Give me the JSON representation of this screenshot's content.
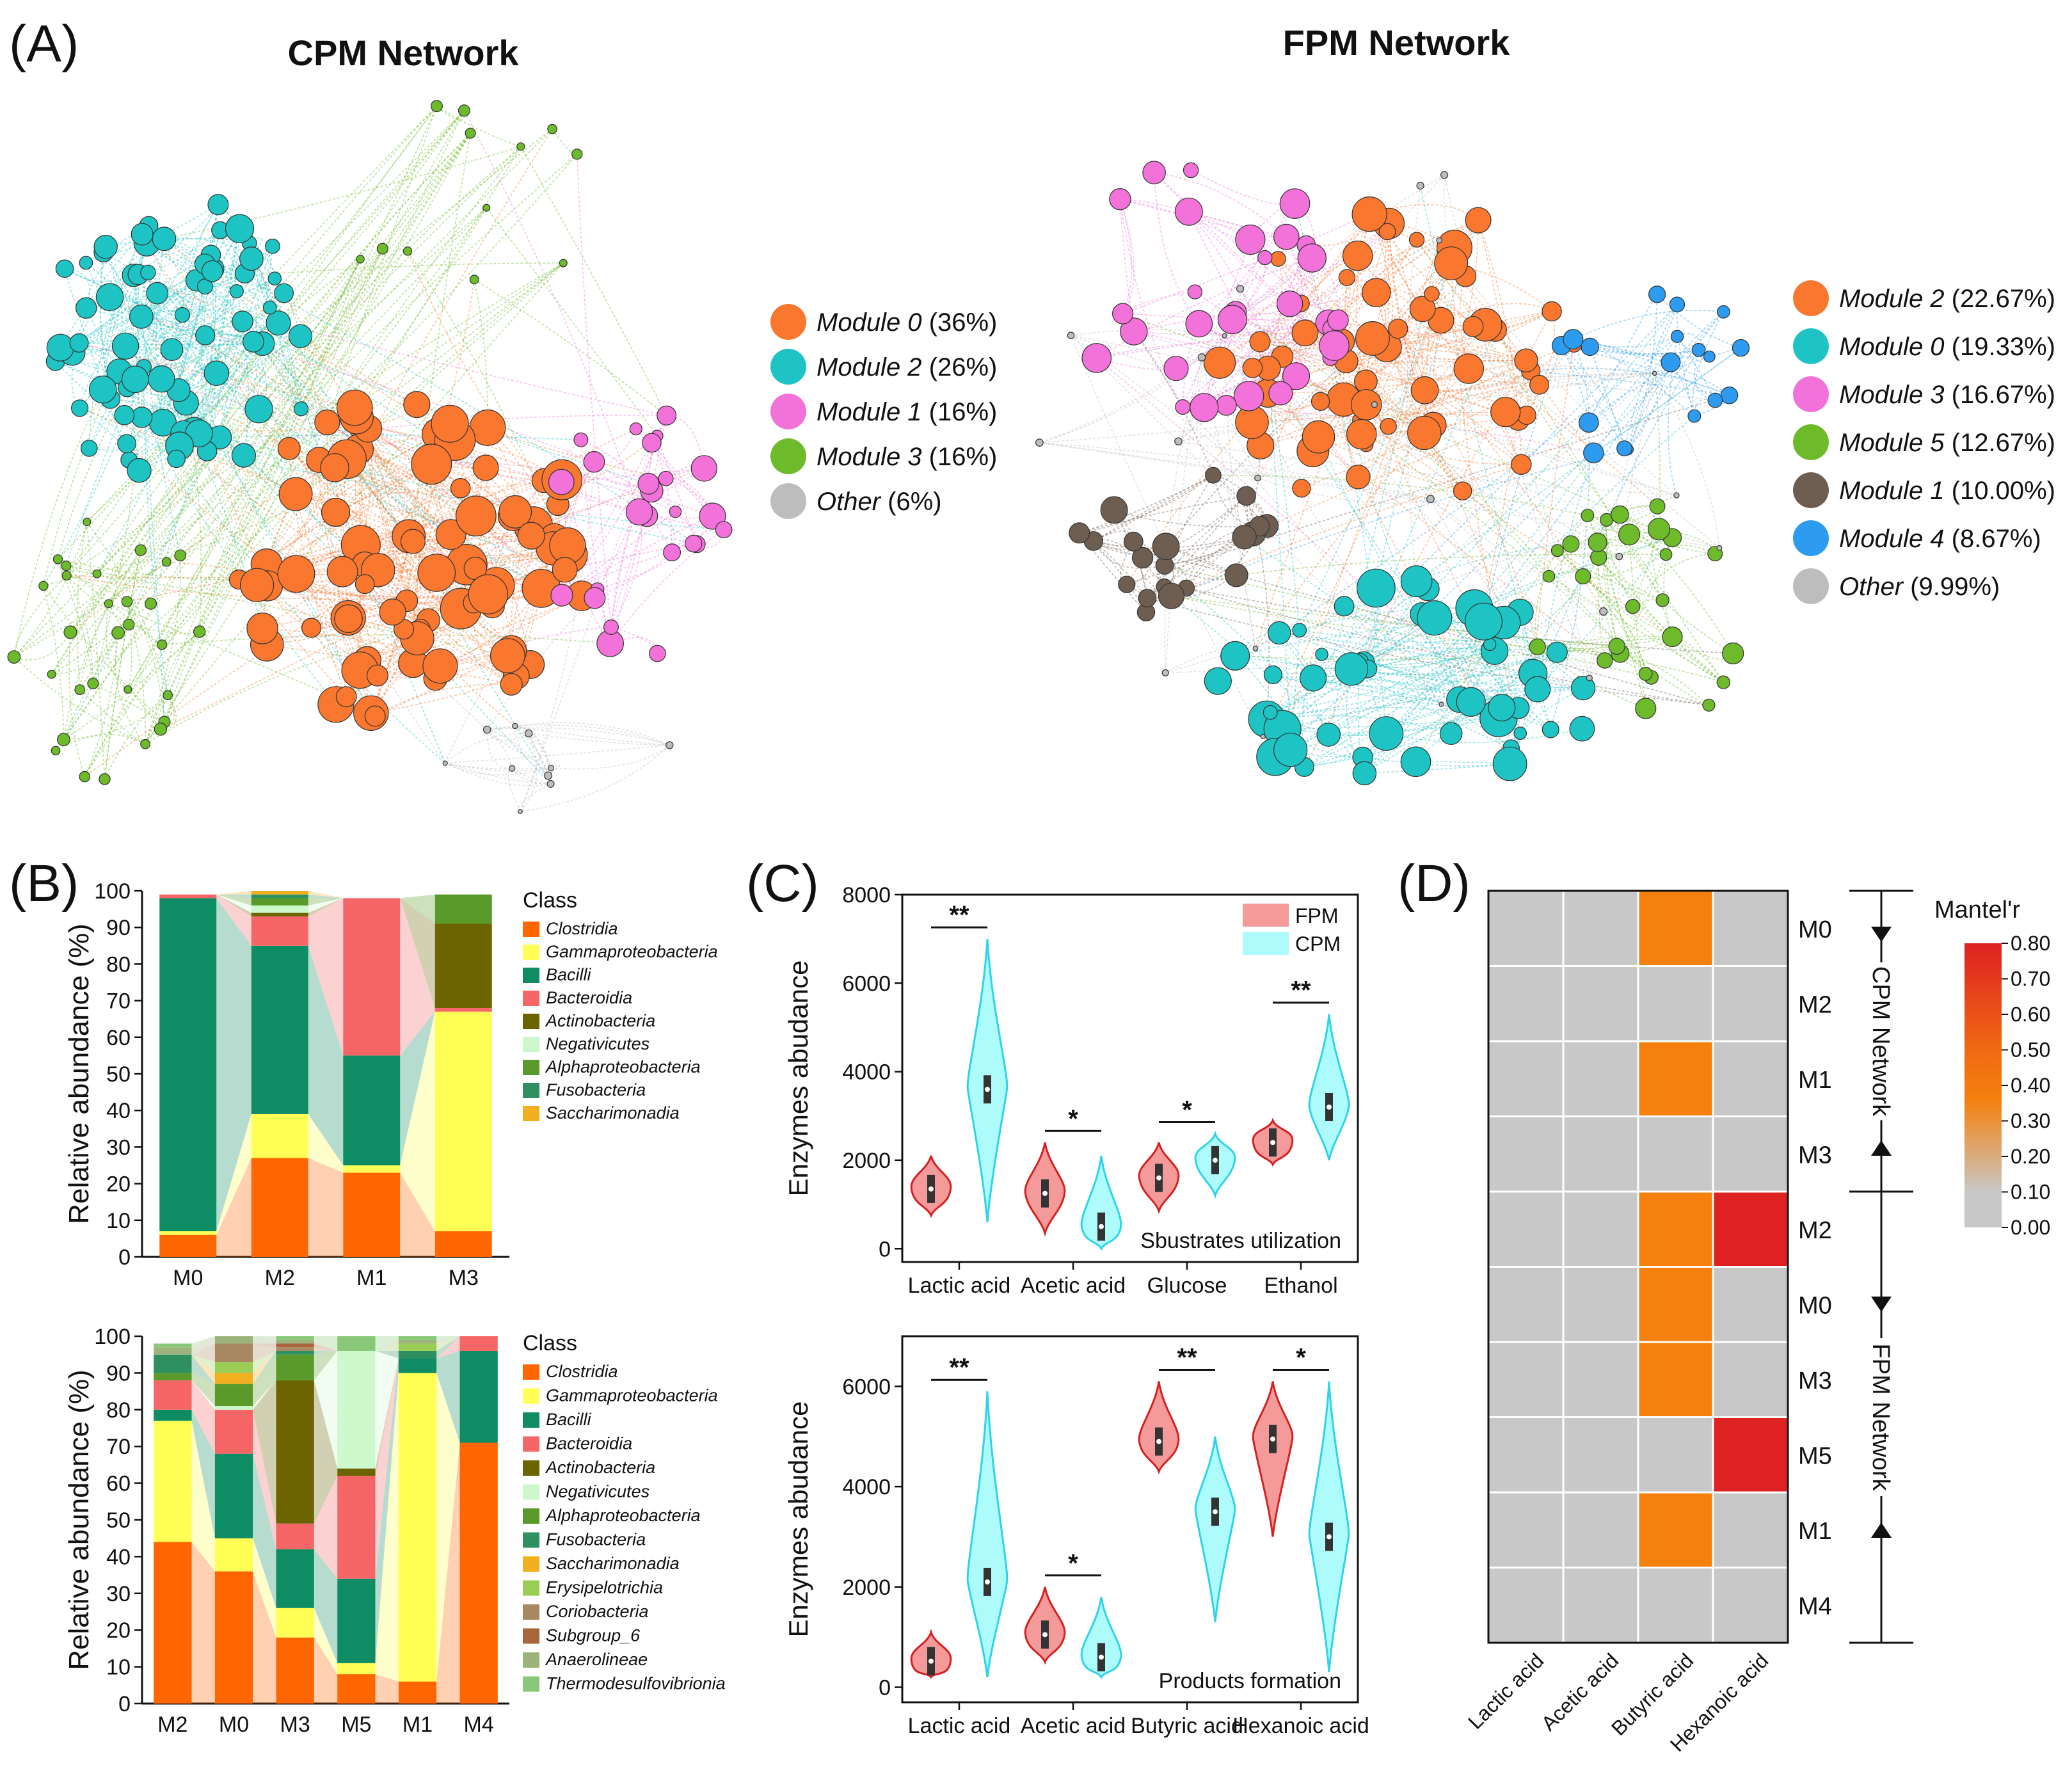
{
  "colors": {
    "module_orange": "#F9772E",
    "module_cyan": "#1EC4C4",
    "module_pink": "#F272DA",
    "module_green": "#6DBB2A",
    "module_brown": "#6E5E52",
    "module_blue": "#2D9BEF",
    "module_gray": "#BDBDBD",
    "fpm_violin": "#F59A9A",
    "fpm_edge": "#D42020",
    "cpm_violin": "#AEFBFB",
    "cpm_edge": "#2DD4E8",
    "heat_gray": "#C8C8C8",
    "heat_orange": "#F5800E",
    "heat_red": "#DE2222"
  },
  "panelA": {
    "label": "(A)",
    "cpm_title": "CPM Network",
    "fpm_title": "FPM Network",
    "cpm_legend": [
      {
        "name": "Module 0",
        "pct": "(36%)",
        "color": "#F9772E"
      },
      {
        "name": "Module 2",
        "pct": "(26%)",
        "color": "#1EC4C4"
      },
      {
        "name": "Module 1",
        "pct": "(16%)",
        "color": "#F272DA"
      },
      {
        "name": "Module 3",
        "pct": "(16%)",
        "color": "#6DBB2A"
      },
      {
        "name": "Other",
        "pct": "(6%)",
        "color": "#BDBDBD"
      }
    ],
    "fpm_legend": [
      {
        "name": "Module 2",
        "pct": "(22.67%)",
        "color": "#F9772E"
      },
      {
        "name": "Module 0",
        "pct": "(19.33%)",
        "color": "#1EC4C4"
      },
      {
        "name": "Module 3",
        "pct": "(16.67%)",
        "color": "#F272DA"
      },
      {
        "name": "Module 5",
        "pct": "(12.67%)",
        "color": "#6DBB2A"
      },
      {
        "name": "Module 1",
        "pct": "(10.00%)",
        "color": "#6E5E52"
      },
      {
        "name": "Module 4",
        "pct": "(8.67%)",
        "color": "#2D9BEF"
      },
      {
        "name": "Other",
        "pct": "(9.99%)",
        "color": "#BDBDBD"
      }
    ]
  },
  "panelB": {
    "label": "(B)",
    "ylabel": "Relative abundance (%)",
    "legend_title": "Class",
    "class_colors": {
      "Clostridia": "#FF6600",
      "Gammaproteobacteria": "#FFFF55",
      "Bacilli": "#0E8C63",
      "Bacteroidia": "#F66666",
      "Actinobacteria": "#6B6400",
      "Negativicutes": "#CCF8CC",
      "Alphaproteobacteria": "#5A9A2A",
      "Fusobacteria": "#2E9060",
      "Saccharimonadia": "#F2B020",
      "Erysipelotrichia": "#9ACD55",
      "Coriobacteria": "#A88860",
      "Subgroup_6": "#A8663C",
      "Anaerolineae": "#9CB47C",
      "Thermodesulfovibrionia": "#88C878"
    }
  },
  "panelC": {
    "label": "(C)",
    "ylabel": "Enzymes abudance",
    "legend": [
      "FPM",
      "CPM"
    ]
  },
  "panelD": {
    "label": "(D)",
    "legend_title": "Mantel'r",
    "cpm_group": "CPM Network",
    "fpm_group": "FPM Network"
  },
  "chart_data": [
    {
      "type": "network",
      "title": "CPM Network",
      "modules": [
        {
          "name": "Module 0",
          "percent": 36
        },
        {
          "name": "Module 2",
          "percent": 26
        },
        {
          "name": "Module 1",
          "percent": 16
        },
        {
          "name": "Module 3",
          "percent": 16
        },
        {
          "name": "Other",
          "percent": 6
        }
      ]
    },
    {
      "type": "network",
      "title": "FPM Network",
      "modules": [
        {
          "name": "Module 2",
          "percent": 22.67
        },
        {
          "name": "Module 0",
          "percent": 19.33
        },
        {
          "name": "Module 3",
          "percent": 16.67
        },
        {
          "name": "Module 5",
          "percent": 12.67
        },
        {
          "name": "Module 1",
          "percent": 10.0
        },
        {
          "name": "Module 4",
          "percent": 8.67
        },
        {
          "name": "Other",
          "percent": 9.99
        }
      ]
    },
    {
      "type": "bar",
      "stacked": true,
      "title": "",
      "ylabel": "Relative abundance (%)",
      "ylim": [
        0,
        100
      ],
      "yticks": [
        0,
        10,
        20,
        30,
        40,
        50,
        60,
        70,
        80,
        90,
        100
      ],
      "categories": [
        "M0",
        "M2",
        "M1",
        "M3"
      ],
      "series": [
        {
          "name": "Clostridia",
          "values": [
            6,
            27,
            23,
            7
          ]
        },
        {
          "name": "Gammaproteobacteria",
          "values": [
            1,
            12,
            2,
            60
          ]
        },
        {
          "name": "Bacilli",
          "values": [
            91,
            46,
            30,
            0
          ]
        },
        {
          "name": "Bacteroidia",
          "values": [
            1,
            8,
            43,
            1
          ]
        },
        {
          "name": "Actinobacteria",
          "values": [
            0,
            1,
            0,
            23
          ]
        },
        {
          "name": "Negativicutes",
          "values": [
            0,
            2,
            0,
            0
          ]
        },
        {
          "name": "Alphaproteobacteria",
          "values": [
            0,
            2,
            0,
            8
          ]
        },
        {
          "name": "Fusobacteria",
          "values": [
            0,
            1,
            0,
            0
          ]
        },
        {
          "name": "Saccharimonadia",
          "values": [
            0,
            1,
            0,
            0
          ]
        }
      ],
      "legend_order": [
        "Clostridia",
        "Gammaproteobacteria",
        "Bacilli",
        "Bacteroidia",
        "Actinobacteria",
        "Negativicutes",
        "Alphaproteobacteria",
        "Fusobacteria",
        "Saccharimonadia"
      ]
    },
    {
      "type": "bar",
      "stacked": true,
      "title": "",
      "ylabel": "Relative abundance (%)",
      "ylim": [
        0,
        100
      ],
      "yticks": [
        0,
        10,
        20,
        30,
        40,
        50,
        60,
        70,
        80,
        90,
        100
      ],
      "categories": [
        "M2",
        "M0",
        "M3",
        "M5",
        "M1",
        "M4"
      ],
      "series": [
        {
          "name": "Clostridia",
          "values": [
            44,
            36,
            18,
            8,
            6,
            71
          ]
        },
        {
          "name": "Gammaproteobacteria",
          "values": [
            33,
            9,
            8,
            3,
            84,
            0
          ]
        },
        {
          "name": "Bacilli",
          "values": [
            3,
            23,
            16,
            23,
            4,
            25
          ]
        },
        {
          "name": "Bacteroidia",
          "values": [
            8,
            12,
            7,
            28,
            0,
            4
          ]
        },
        {
          "name": "Actinobacteria",
          "values": [
            0,
            0,
            39,
            2,
            0,
            0
          ]
        },
        {
          "name": "Negativicutes",
          "values": [
            0,
            1,
            0,
            32,
            0,
            0
          ]
        },
        {
          "name": "Alphaproteobacteria",
          "values": [
            2,
            6,
            7,
            0,
            0,
            0
          ]
        },
        {
          "name": "Fusobacteria",
          "values": [
            5,
            0,
            1,
            0,
            2,
            0
          ]
        },
        {
          "name": "Saccharimonadia",
          "values": [
            0,
            3,
            0,
            0,
            0,
            0
          ]
        },
        {
          "name": "Erysipelotrichia",
          "values": [
            0,
            3,
            0,
            0,
            2,
            0
          ]
        },
        {
          "name": "Coriobacteria",
          "values": [
            0,
            5,
            1,
            0,
            0,
            0
          ]
        },
        {
          "name": "Subgroup_6",
          "values": [
            0,
            0,
            1,
            0,
            0,
            0
          ]
        },
        {
          "name": "Anaerolineae",
          "values": [
            2,
            2,
            1,
            0,
            1,
            0
          ]
        },
        {
          "name": "Thermodesulfovibrionia",
          "values": [
            1,
            0,
            1,
            4,
            1,
            0
          ]
        }
      ],
      "legend_order": [
        "Clostridia",
        "Gammaproteobacteria",
        "Bacilli",
        "Bacteroidia",
        "Actinobacteria",
        "Negativicutes",
        "Alphaproteobacteria",
        "Fusobacteria",
        "Saccharimonadia",
        "Erysipelotrichia",
        "Coriobacteria",
        "Subgroup_6",
        "Anaerolineae",
        "Thermodesulfovibrionia"
      ]
    },
    {
      "type": "violin",
      "title": "Sbustrates utilization",
      "ylabel": "Enzymes abudance",
      "ylim": [
        -300,
        8000
      ],
      "yticks": [
        0,
        2000,
        4000,
        6000,
        8000
      ],
      "categories": [
        "Lactic acid",
        "Acetic acid",
        "Glucose",
        "Ethanol"
      ],
      "series": [
        {
          "name": "FPM",
          "median": [
            1350,
            1250,
            1600,
            2400
          ],
          "min": [
            750,
            350,
            850,
            1900
          ],
          "max": [
            2100,
            2400,
            2400,
            2900
          ]
        },
        {
          "name": "CPM",
          "median": [
            3600,
            500,
            2000,
            3200
          ],
          "min": [
            600,
            0,
            1200,
            2000
          ],
          "max": [
            7000,
            2100,
            2600,
            5300
          ]
        }
      ],
      "significance": [
        "**",
        "*",
        "*",
        "**"
      ]
    },
    {
      "type": "violin",
      "title": "Products formation",
      "ylabel": "Enzymes abudance",
      "ylim": [
        -300,
        7000
      ],
      "yticks": [
        0,
        2000,
        4000,
        6000
      ],
      "categories": [
        "Lactic acid",
        "Acetic acid",
        "Butyric acid",
        "Hexanoic acid"
      ],
      "series": [
        {
          "name": "FPM",
          "median": [
            520,
            1050,
            4900,
            4950
          ],
          "min": [
            200,
            500,
            4300,
            3000
          ],
          "max": [
            1100,
            2000,
            6100,
            6100
          ]
        },
        {
          "name": "CPM",
          "median": [
            2100,
            600,
            3500,
            3000
          ],
          "min": [
            200,
            200,
            1300,
            300
          ],
          "max": [
            5900,
            1800,
            5000,
            6100
          ]
        }
      ],
      "significance": [
        "**",
        "*",
        "**",
        "*"
      ]
    },
    {
      "type": "heatmap",
      "title": "",
      "xlabels": [
        "Lactic acid",
        "Acetic acid",
        "Butyric acid",
        "Hexanoic acid"
      ],
      "ylabels": [
        "M0",
        "M2",
        "M1",
        "M3",
        "M2",
        "M0",
        "M3",
        "M5",
        "M1",
        "M4"
      ],
      "row_groups": [
        {
          "name": "CPM Network",
          "rows": [
            0,
            3
          ]
        },
        {
          "name": "FPM Network",
          "rows": [
            4,
            9
          ]
        }
      ],
      "values": [
        [
          0,
          0,
          0.4,
          0
        ],
        [
          0,
          0,
          0,
          0
        ],
        [
          0,
          0,
          0.4,
          0
        ],
        [
          0,
          0,
          0,
          0
        ],
        [
          0,
          0,
          0.4,
          0.8
        ],
        [
          0,
          0,
          0.4,
          0
        ],
        [
          0,
          0,
          0.4,
          0
        ],
        [
          0,
          0,
          0,
          0.8
        ],
        [
          0,
          0,
          0.4,
          0
        ],
        [
          0,
          0,
          0,
          0
        ]
      ],
      "colorbar": {
        "label": "Mantel'r",
        "ticks": [
          "0.80",
          "0.70",
          "0.60",
          "0.50",
          "0.40",
          "0.30",
          "0.20",
          "0.10",
          "0.00"
        ],
        "range": [
          0,
          0.8
        ]
      }
    }
  ]
}
